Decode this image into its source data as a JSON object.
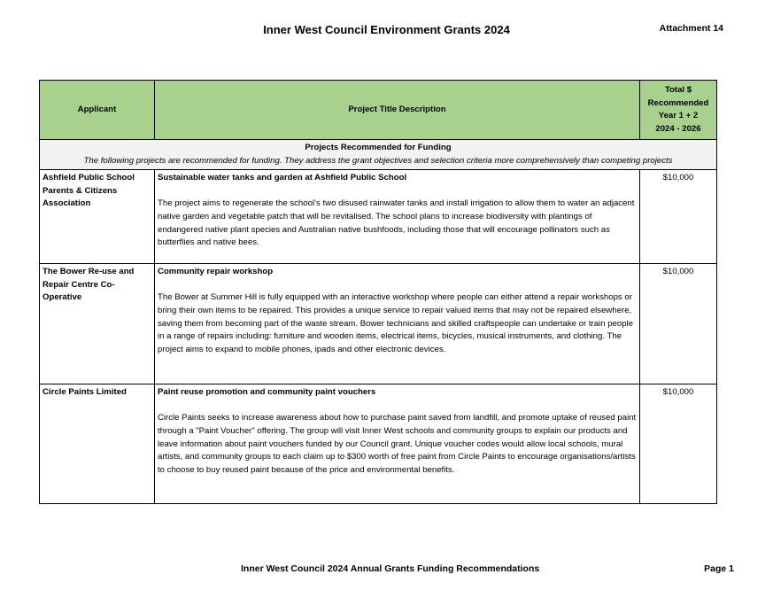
{
  "header": {
    "title": "Inner West Council Environment Grants 2024",
    "attachment": "Attachment 14"
  },
  "table": {
    "columns": [
      "Applicant",
      "Project Title Description",
      "Total $\nRecommended\nYear 1 + 2\n2024 - 2026"
    ],
    "section": {
      "title": "Projects Recommended for Funding",
      "subtitle": "The following projects are recommended for funding. They address the grant objectives and selection criteria more comprehensively than competing projects"
    },
    "rows": [
      {
        "applicant": "Ashfield Public School Parents & Citizens Association",
        "project_title": "Sustainable water tanks and garden at Ashfield Public School",
        "description": "The project aims to regenerate the school’s two disused rainwater tanks and install irrigation to allow them to water an adjacent native garden and vegetable patch that will be revitalised. The school plans to increase biodiversity with plantings of endangered native plant species and Australian native bushfoods, including those that will encourage pollinators such as butterflies and native bees.",
        "amount": "$10,000"
      },
      {
        "applicant": "The Bower Re-use and Repair Centre Co-Operative",
        "project_title": "Community repair workshop",
        "description": "The Bower at Summer Hill is fully equipped with an interactive workshop where people can either attend a repair workshops or bring their own items to be repaired. This provides a unique service to repair valued items that may not be repaired elsewhere, saving them from becoming part of the waste stream. Bower technicians and skilled craftspeople can undertake or train people in a range of repairs including:  furniture and wooden items, electrical items, bicycles, musical instruments, and clothing.  The project aims to expand to mobile phones, ipads and other electronic devices.",
        "amount": "$10,000"
      },
      {
        "applicant": "Circle Paints Limited",
        "project_title": "Paint reuse promotion and community paint vouchers",
        "description": "Circle Paints seeks to increase awareness about how to purchase paint saved from landfill,  and promote uptake of reused paint through a \"Paint Voucher\" offering. The group will visit Inner West schools and community groups to explain our products and leave information about paint vouchers funded by our Council grant. Unique voucher codes would allow local schools, mural artists, and community groups to each claim up to $300 worth of free paint from Circle Paints to encourage organisations/artists to choose to buy reused paint because of the price and environmental benefits.",
        "amount": "$10,000"
      }
    ]
  },
  "footer": {
    "left": "Inner West Council 2024 Annual Grants Funding Recommendations",
    "right": "Page 1"
  },
  "colors": {
    "header_bg": "#a9d18e",
    "section_bg": "#f2f2f2"
  }
}
